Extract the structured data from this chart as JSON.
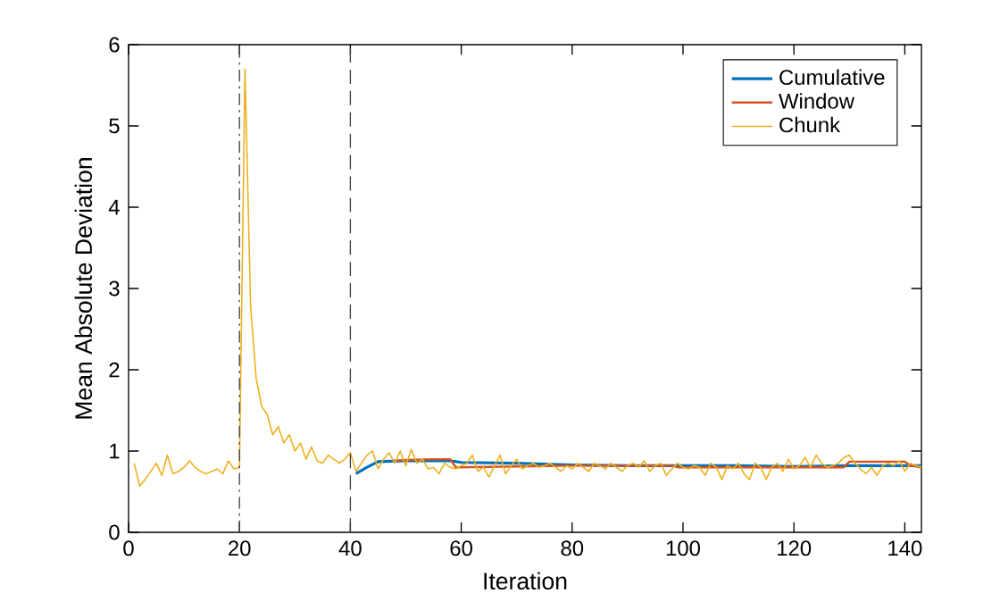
{
  "chart_data": {
    "type": "line",
    "xlabel": "Iteration",
    "ylabel": "Mean Absolute Deviation",
    "xlim": [
      0,
      143
    ],
    "ylim": [
      0,
      6
    ],
    "xticks": [
      0,
      20,
      40,
      60,
      80,
      100,
      120,
      140
    ],
    "yticks": [
      0,
      1,
      2,
      3,
      4,
      5,
      6
    ],
    "legend": "top right",
    "grid": false,
    "marker": "none",
    "line_style": "solid",
    "series": [
      {
        "name": "Cumulative",
        "color": "#0072bd",
        "x": [
          41,
          43,
          45,
          50,
          55,
          58,
          60,
          70,
          80,
          90,
          100,
          110,
          120,
          130,
          140,
          143
        ],
        "values": [
          0.72,
          0.8,
          0.87,
          0.88,
          0.88,
          0.88,
          0.86,
          0.85,
          0.83,
          0.82,
          0.82,
          0.82,
          0.81,
          0.82,
          0.82,
          0.82
        ]
      },
      {
        "name": "Window",
        "color": "#d95319",
        "x": [
          48,
          50,
          55,
          58,
          59,
          70,
          80,
          90,
          98,
          99,
          110,
          120,
          129,
          130,
          140,
          141,
          143
        ],
        "values": [
          0.88,
          0.89,
          0.9,
          0.9,
          0.8,
          0.81,
          0.82,
          0.82,
          0.82,
          0.8,
          0.8,
          0.8,
          0.8,
          0.87,
          0.87,
          0.82,
          0.8
        ]
      },
      {
        "name": "Chunk",
        "color": "#edb120",
        "x": [
          1,
          2,
          3,
          4,
          5,
          6,
          7,
          8,
          9,
          10,
          11,
          12,
          13,
          14,
          15,
          16,
          17,
          18,
          19,
          20,
          21,
          22,
          23,
          24,
          25,
          26,
          27,
          28,
          29,
          30,
          31,
          32,
          33,
          34,
          35,
          36,
          37,
          38,
          39,
          40,
          41,
          42,
          43,
          44,
          45,
          46,
          47,
          48,
          49,
          50,
          51,
          52,
          53,
          54,
          55,
          56,
          57,
          58,
          59,
          60,
          61,
          62,
          63,
          64,
          65,
          66,
          67,
          68,
          69,
          70,
          71,
          72,
          73,
          74,
          75,
          76,
          77,
          78,
          79,
          80,
          81,
          82,
          83,
          84,
          85,
          86,
          87,
          88,
          89,
          90,
          91,
          92,
          93,
          94,
          95,
          96,
          97,
          98,
          99,
          100,
          101,
          102,
          103,
          104,
          105,
          106,
          107,
          108,
          109,
          110,
          111,
          112,
          113,
          114,
          115,
          116,
          117,
          118,
          119,
          120,
          121,
          122,
          123,
          124,
          125,
          126,
          127,
          128,
          129,
          130,
          131,
          132,
          133,
          134,
          135,
          136,
          137,
          138,
          139,
          140,
          141,
          142,
          143
        ],
        "values": [
          0.85,
          0.57,
          0.65,
          0.75,
          0.85,
          0.7,
          0.95,
          0.72,
          0.75,
          0.8,
          0.88,
          0.8,
          0.75,
          0.72,
          0.75,
          0.78,
          0.72,
          0.88,
          0.78,
          0.8,
          5.7,
          2.8,
          1.9,
          1.55,
          1.45,
          1.2,
          1.3,
          1.1,
          1.2,
          1.0,
          1.1,
          0.9,
          1.05,
          0.88,
          0.85,
          0.95,
          0.9,
          0.85,
          0.9,
          0.98,
          0.75,
          0.85,
          0.95,
          1.0,
          0.78,
          0.9,
          0.98,
          0.85,
          1.0,
          0.82,
          1.02,
          0.85,
          0.9,
          0.78,
          0.8,
          0.72,
          0.85,
          0.8,
          0.78,
          0.82,
          0.85,
          0.95,
          0.75,
          0.8,
          0.68,
          0.82,
          0.95,
          0.72,
          0.82,
          0.9,
          0.78,
          0.82,
          0.85,
          0.8,
          0.82,
          0.85,
          0.8,
          0.75,
          0.82,
          0.78,
          0.85,
          0.8,
          0.75,
          0.85,
          0.82,
          0.78,
          0.85,
          0.8,
          0.75,
          0.82,
          0.85,
          0.8,
          0.88,
          0.75,
          0.82,
          0.85,
          0.7,
          0.78,
          0.85,
          0.8,
          0.78,
          0.82,
          0.8,
          0.7,
          0.85,
          0.8,
          0.65,
          0.82,
          0.78,
          0.85,
          0.72,
          0.65,
          0.85,
          0.8,
          0.65,
          0.8,
          0.85,
          0.75,
          0.9,
          0.78,
          0.82,
          0.92,
          0.8,
          0.95,
          0.85,
          0.8,
          0.82,
          0.85,
          0.92,
          0.95,
          0.85,
          0.78,
          0.72,
          0.8,
          0.7,
          0.82,
          0.85,
          0.82,
          0.88,
          0.75,
          0.85,
          0.82,
          0.8
        ]
      }
    ],
    "ref_lines": [
      {
        "axis": "x",
        "value": 20,
        "color": "#404040",
        "line_style": "dashdot"
      },
      {
        "axis": "x",
        "value": 40,
        "color": "#404040",
        "line_style": "dashed"
      }
    ]
  }
}
